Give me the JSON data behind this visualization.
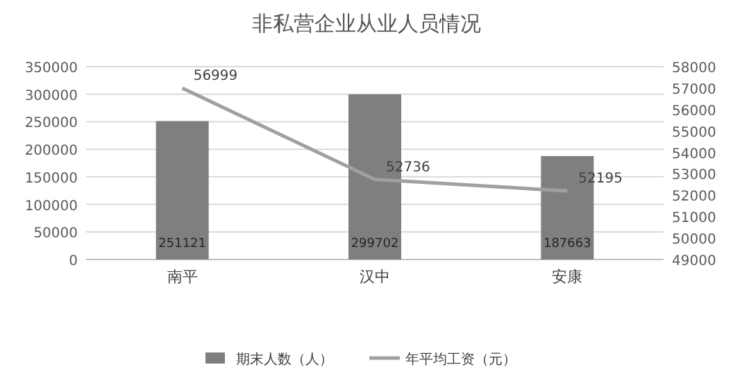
{
  "chart_data": {
    "type": "bar",
    "title": "非私营企业从业人员情况",
    "categories": [
      "南平",
      "汉中",
      "安康"
    ],
    "series": [
      {
        "name": "期末人数（人）",
        "color": "#7f7f7f",
        "values": [
          251121,
          299702,
          187663
        ]
      },
      {
        "name": "年平均工资（元）",
        "type": "line",
        "axis": "y2",
        "color": "#a0a0a0",
        "values": [
          56999,
          52736,
          52195
        ]
      }
    ],
    "ylim": [
      0,
      350000
    ],
    "yticks": [
      0,
      50000,
      100000,
      150000,
      200000,
      250000,
      300000,
      350000
    ],
    "y2lim": [
      49000,
      58000
    ],
    "y2ticks": [
      49000,
      50000,
      51000,
      52000,
      53000,
      54000,
      55000,
      56000,
      57000,
      58000
    ],
    "grid": "y",
    "legend": "bottom",
    "data_labels": true
  }
}
